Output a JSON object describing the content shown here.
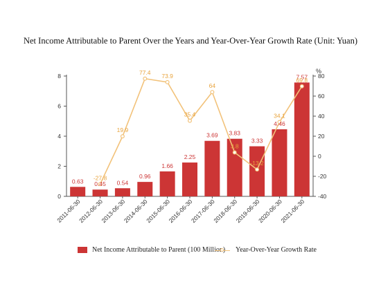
{
  "chart_data": {
    "type": "bar",
    "title": "Net Income Attributable to Parent Over the Years and Year-Over-Year Growth Rate (Unit: Yuan)",
    "categories": [
      "2011-06-30",
      "2012-06-30",
      "2013-06-30",
      "2014-06-30",
      "2015-06-30",
      "2016-06-30",
      "2017-06-30",
      "2018-06-30",
      "2019-06-30",
      "2020-06-30",
      "2021-06-30"
    ],
    "series": [
      {
        "name": "Net Income Attributable to Parent (100 Million)",
        "type": "bar",
        "axis": "left",
        "color": "#cc3535",
        "values": [
          0.63,
          0.45,
          0.54,
          0.96,
          1.66,
          2.25,
          3.69,
          3.83,
          3.33,
          4.46,
          7.57
        ],
        "labels": [
          "0.63",
          "0.45",
          "0.54",
          "0.96",
          "1.66",
          "2.25",
          "3.69",
          "3.83",
          "3.33",
          "4.46",
          "7.57"
        ]
      },
      {
        "name": "Year-Over-Year Growth Rate",
        "type": "line",
        "axis": "right",
        "color": "#f2c27a",
        "label_color": "#e8a33c",
        "values": [
          null,
          -27.8,
          19.9,
          77.4,
          73.9,
          35.4,
          64,
          3.8,
          -13.2,
          34.1,
          69.8
        ],
        "labels": [
          "",
          "-27.8",
          "19.9",
          "77.4",
          "73.9",
          "35.4",
          "64",
          "3.8",
          "-13.2",
          "34.1",
          "69.8"
        ]
      }
    ],
    "yleft": {
      "min": 0,
      "max": 8,
      "ticks": [
        "0",
        "2",
        "4",
        "6",
        "8"
      ]
    },
    "yright": {
      "label": "%",
      "min": -40,
      "max": 80,
      "ticks": [
        "-40",
        "-20",
        "0",
        "20",
        "40",
        "60",
        "80"
      ]
    },
    "grid": false,
    "legend": "bottom"
  }
}
